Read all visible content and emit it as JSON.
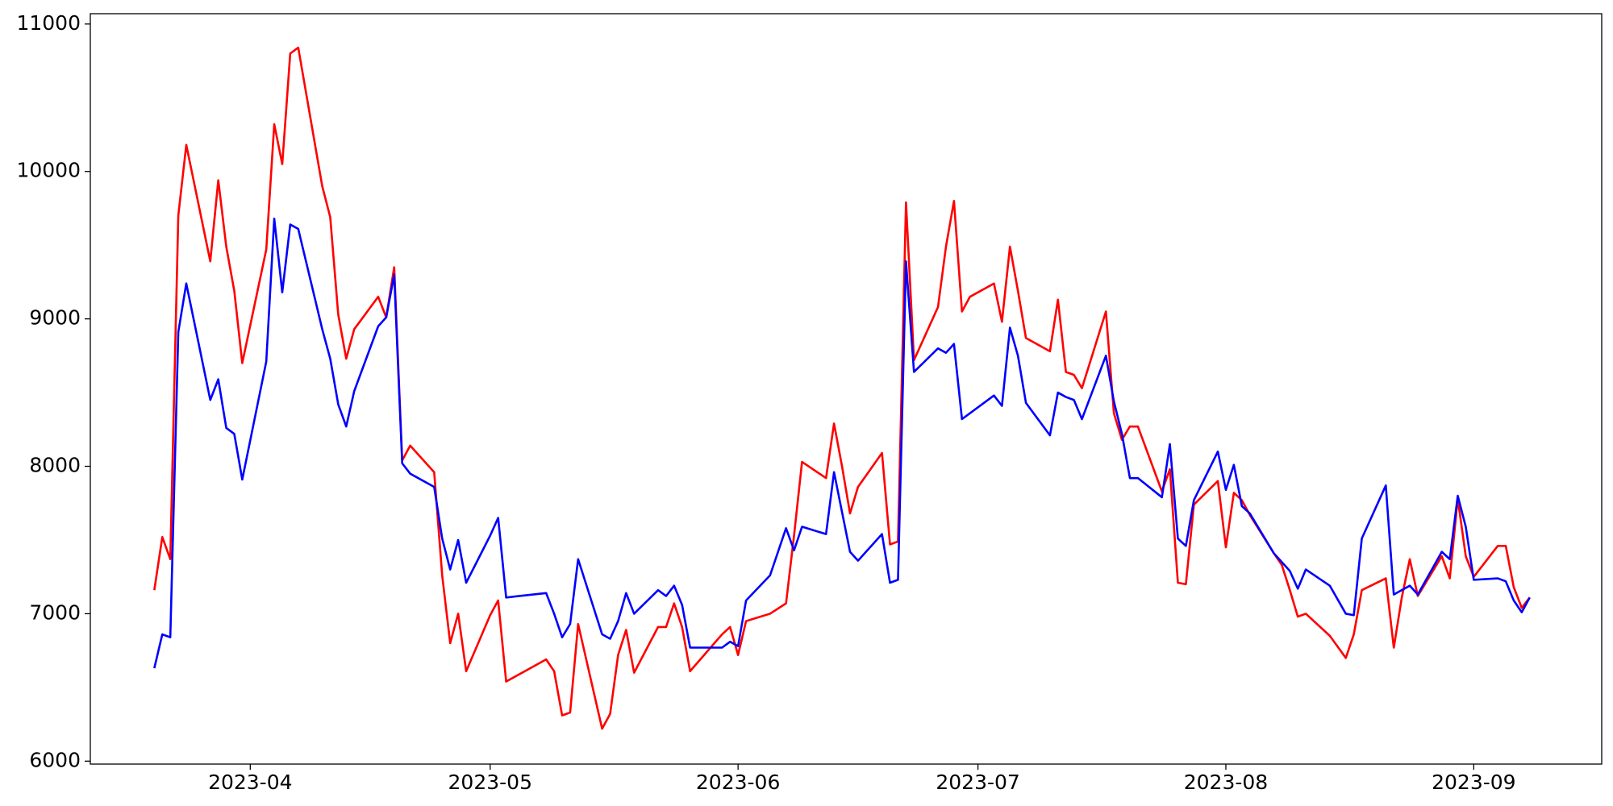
{
  "chart_data": {
    "type": "line",
    "x": [
      "2023-03-20",
      "2023-03-21",
      "2023-03-22",
      "2023-03-23",
      "2023-03-24",
      "2023-03-27",
      "2023-03-28",
      "2023-03-29",
      "2023-03-30",
      "2023-03-31",
      "2023-04-03",
      "2023-04-04",
      "2023-04-05",
      "2023-04-06",
      "2023-04-07",
      "2023-04-10",
      "2023-04-11",
      "2023-04-12",
      "2023-04-13",
      "2023-04-14",
      "2023-04-17",
      "2023-04-18",
      "2023-04-19",
      "2023-04-20",
      "2023-04-21",
      "2023-04-24",
      "2023-04-25",
      "2023-04-26",
      "2023-04-27",
      "2023-04-28",
      "2023-05-01",
      "2023-05-02",
      "2023-05-03",
      "2023-05-08",
      "2023-05-09",
      "2023-05-10",
      "2023-05-11",
      "2023-05-12",
      "2023-05-15",
      "2023-05-16",
      "2023-05-17",
      "2023-05-18",
      "2023-05-19",
      "2023-05-22",
      "2023-05-23",
      "2023-05-24",
      "2023-05-25",
      "2023-05-26",
      "2023-05-30",
      "2023-05-31",
      "2023-06-01",
      "2023-06-02",
      "2023-06-05",
      "2023-06-07",
      "2023-06-08",
      "2023-06-09",
      "2023-06-12",
      "2023-06-13",
      "2023-06-14",
      "2023-06-15",
      "2023-06-16",
      "2023-06-19",
      "2023-06-20",
      "2023-06-21",
      "2023-06-22",
      "2023-06-23",
      "2023-06-26",
      "2023-06-27",
      "2023-06-28",
      "2023-06-29",
      "2023-06-30",
      "2023-07-03",
      "2023-07-04",
      "2023-07-05",
      "2023-07-06",
      "2023-07-07",
      "2023-07-10",
      "2023-07-11",
      "2023-07-12",
      "2023-07-13",
      "2023-07-14",
      "2023-07-17",
      "2023-07-18",
      "2023-07-19",
      "2023-07-20",
      "2023-07-21",
      "2023-07-24",
      "2023-07-25",
      "2023-07-26",
      "2023-07-27",
      "2023-07-28",
      "2023-07-31",
      "2023-08-01",
      "2023-08-02",
      "2023-08-03",
      "2023-08-04",
      "2023-08-07",
      "2023-08-08",
      "2023-08-09",
      "2023-08-10",
      "2023-08-11",
      "2023-08-14",
      "2023-08-16",
      "2023-08-17",
      "2023-08-18",
      "2023-08-21",
      "2023-08-22",
      "2023-08-23",
      "2023-08-24",
      "2023-08-25",
      "2023-08-28",
      "2023-08-29",
      "2023-08-30",
      "2023-08-31",
      "2023-09-01",
      "2023-09-04",
      "2023-09-05",
      "2023-09-06",
      "2023-09-07",
      "2023-09-08"
    ],
    "series": [
      {
        "color": "#ff0000",
        "values": [
          7160,
          7520,
          7370,
          9700,
          10180,
          9390,
          9940,
          9490,
          9190,
          8700,
          9470,
          10320,
          10050,
          10800,
          10840,
          9900,
          9690,
          9030,
          8730,
          8930,
          9150,
          9010,
          9350,
          8040,
          8140,
          7960,
          7260,
          6800,
          7000,
          6610,
          6990,
          7090,
          6540,
          6690,
          6610,
          6310,
          6330,
          6930,
          6220,
          6320,
          6720,
          6890,
          6600,
          6910,
          6910,
          7070,
          6910,
          6610,
          6860,
          6910,
          6720,
          6950,
          7000,
          7070,
          7530,
          8030,
          7920,
          8290,
          8000,
          7680,
          7860,
          8090,
          7470,
          7490,
          9790,
          8720,
          9080,
          9490,
          9800,
          9050,
          9150,
          9240,
          8980,
          9490,
          9190,
          8870,
          8780,
          9130,
          8640,
          8620,
          8530,
          9050,
          8360,
          8180,
          8270,
          8270,
          7830,
          7980,
          7210,
          7200,
          7740,
          7900,
          7450,
          7820,
          7770,
          7670,
          7410,
          7330,
          7160,
          6980,
          7000,
          6850,
          6700,
          6860,
          7160,
          7240,
          6770,
          7110,
          7370,
          7120,
          7390,
          7240,
          7780,
          7390,
          7250,
          7460,
          7460,
          7180,
          7040,
          7110
        ]
      },
      {
        "color": "#0000ff",
        "values": [
          6630,
          6860,
          6840,
          8910,
          9240,
          8450,
          8590,
          8260,
          8220,
          7910,
          8710,
          9680,
          9180,
          9640,
          9610,
          8930,
          8730,
          8420,
          8270,
          8510,
          8950,
          9010,
          9300,
          8020,
          7950,
          7860,
          7510,
          7300,
          7500,
          7210,
          7530,
          7650,
          7110,
          7140,
          7000,
          6840,
          6930,
          7370,
          6860,
          6830,
          6950,
          7140,
          7000,
          7160,
          7120,
          7190,
          7060,
          6770,
          6770,
          6810,
          6780,
          7090,
          7260,
          7580,
          7430,
          7590,
          7540,
          7960,
          7690,
          7420,
          7360,
          7540,
          7210,
          7230,
          9390,
          8640,
          8800,
          8770,
          8830,
          8320,
          8360,
          8480,
          8410,
          8940,
          8750,
          8430,
          8210,
          8500,
          8470,
          8450,
          8320,
          8750,
          8440,
          8220,
          7920,
          7920,
          7790,
          8150,
          7510,
          7460,
          7770,
          8100,
          7840,
          8010,
          7730,
          7680,
          7410,
          7350,
          7290,
          7170,
          7300,
          7190,
          7000,
          6990,
          7510,
          7870,
          7130,
          7160,
          7190,
          7130,
          7420,
          7370,
          7800,
          7590,
          7230,
          7240,
          7220,
          7090,
          7010,
          7110
        ]
      }
    ],
    "xlim": [
      "2023-03-12",
      "2023-09-17"
    ],
    "xticks": [
      {
        "value": "2023-04-01",
        "label": "2023-04"
      },
      {
        "value": "2023-05-01",
        "label": "2023-05"
      },
      {
        "value": "2023-06-01",
        "label": "2023-06"
      },
      {
        "value": "2023-07-01",
        "label": "2023-07"
      },
      {
        "value": "2023-08-01",
        "label": "2023-08"
      },
      {
        "value": "2023-09-01",
        "label": "2023-09"
      }
    ],
    "ylim": [
      5980,
      11070
    ],
    "yticks": [
      6000,
      7000,
      8000,
      9000,
      10000,
      11000
    ],
    "grid": false
  }
}
